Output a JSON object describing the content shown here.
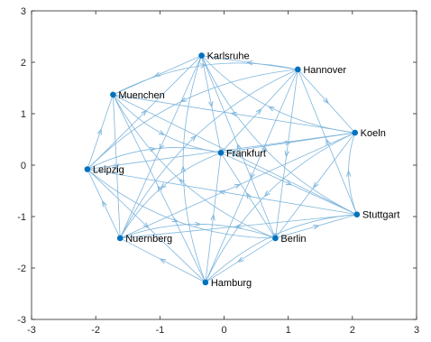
{
  "chart_data": {
    "type": "directed-graph",
    "xlim": [
      -3,
      3
    ],
    "ylim": [
      -3,
      3
    ],
    "xticks": [
      -3,
      -2,
      -1,
      0,
      1,
      2,
      3
    ],
    "yticks": [
      -3,
      -2,
      -1,
      0,
      1,
      2,
      3
    ],
    "grid": false,
    "colors": {
      "edge": "#7fb6dc",
      "node": "#0072bd",
      "axis": "#262626"
    },
    "nodes": [
      {
        "name": "Karlsruhe",
        "x": -0.35,
        "y": 2.13
      },
      {
        "name": "Hannover",
        "x": 1.15,
        "y": 1.86
      },
      {
        "name": "Muenchen",
        "x": -1.73,
        "y": 1.37
      },
      {
        "name": "Koeln",
        "x": 2.04,
        "y": 0.63
      },
      {
        "name": "Frankfurt",
        "x": -0.05,
        "y": 0.24
      },
      {
        "name": "Leipzig",
        "x": -2.13,
        "y": -0.08
      },
      {
        "name": "Stuttgart",
        "x": 2.07,
        "y": -0.96
      },
      {
        "name": "Berlin",
        "x": 0.8,
        "y": -1.42
      },
      {
        "name": "Nuernberg",
        "x": -1.62,
        "y": -1.42
      },
      {
        "name": "Hamburg",
        "x": -0.29,
        "y": -2.28
      }
    ]
  }
}
